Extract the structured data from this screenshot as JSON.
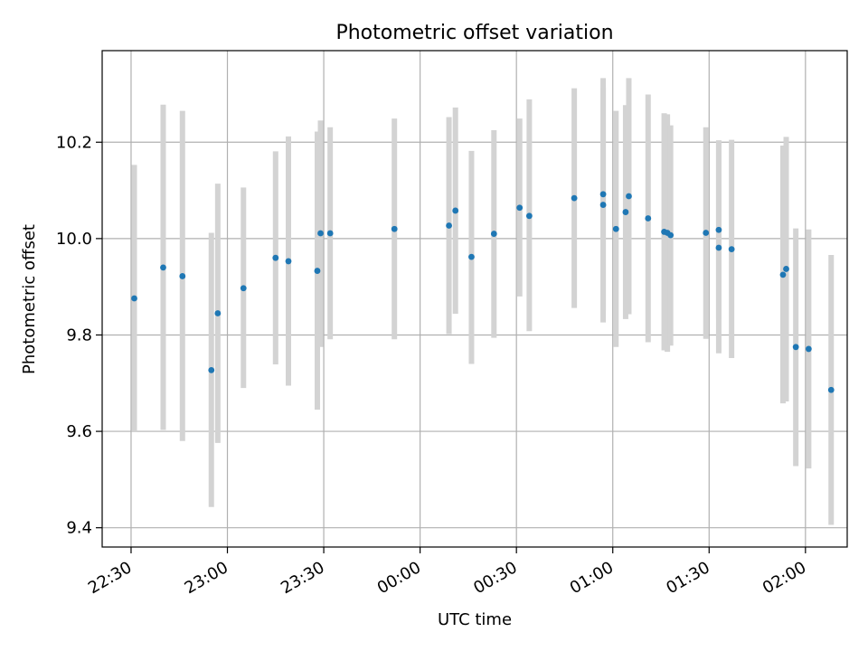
{
  "chart_data": {
    "type": "scatter",
    "title": "Photometric offset variation",
    "xlabel": "UTC time",
    "ylabel": "Photometric offset",
    "x_axis": {
      "kind": "time",
      "range": [
        "22:21",
        "02:13"
      ],
      "tick_values": [
        "22:30",
        "23:00",
        "23:30",
        "00:00",
        "00:30",
        "01:00",
        "01:30",
        "02:00"
      ],
      "tick_labels": [
        "22:30",
        "23:00",
        "23:30",
        "00:00",
        "00:30",
        "01:00",
        "01:30",
        "02:00"
      ],
      "tick_label_rotation": "slanted"
    },
    "y_axis": {
      "range": [
        9.36,
        10.39
      ],
      "tick_values": [
        9.4,
        9.6,
        9.8,
        10.0,
        10.2
      ],
      "tick_labels": [
        "9.4",
        "9.6",
        "9.8",
        "10.0",
        "10.2"
      ]
    },
    "grid": true,
    "colors": {
      "points": "#1f77b4",
      "errorbars": "#d3d3d3",
      "grid": "#b0b0b0",
      "axes": "#000000"
    },
    "points": [
      {
        "x": "22:31",
        "y": 9.876,
        "low": 9.6,
        "high": 10.153
      },
      {
        "x": "22:40",
        "y": 9.94,
        "low": 9.603,
        "high": 10.278
      },
      {
        "x": "22:46",
        "y": 9.922,
        "low": 9.58,
        "high": 10.265
      },
      {
        "x": "22:55",
        "y": 9.727,
        "low": 9.443,
        "high": 10.012
      },
      {
        "x": "22:57",
        "y": 9.845,
        "low": 9.576,
        "high": 10.114
      },
      {
        "x": "23:05",
        "y": 9.897,
        "low": 9.69,
        "high": 10.106
      },
      {
        "x": "23:15",
        "y": 9.96,
        "low": 9.739,
        "high": 10.181
      },
      {
        "x": "23:19",
        "y": 9.953,
        "low": 9.695,
        "high": 10.212
      },
      {
        "x": "23:28",
        "y": 9.933,
        "low": 9.645,
        "high": 10.222
      },
      {
        "x": "23:29",
        "y": 10.011,
        "low": 9.775,
        "high": 10.245
      },
      {
        "x": "23:32",
        "y": 10.011,
        "low": 9.791,
        "high": 10.231
      },
      {
        "x": "23:52",
        "y": 10.02,
        "low": 9.791,
        "high": 10.249
      },
      {
        "x": "00:09",
        "y": 10.027,
        "low": 9.802,
        "high": 10.252
      },
      {
        "x": "00:11",
        "y": 10.058,
        "low": 9.844,
        "high": 10.272
      },
      {
        "x": "00:16",
        "y": 9.962,
        "low": 9.74,
        "high": 10.182
      },
      {
        "x": "00:23",
        "y": 10.01,
        "low": 9.794,
        "high": 10.225
      },
      {
        "x": "00:31",
        "y": 10.064,
        "low": 9.88,
        "high": 10.249
      },
      {
        "x": "00:34",
        "y": 10.047,
        "low": 9.808,
        "high": 10.289
      },
      {
        "x": "00:48",
        "y": 10.084,
        "low": 9.856,
        "high": 10.312
      },
      {
        "x": "00:57",
        "y": 10.07,
        "low": 9.826,
        "high": 10.313
      },
      {
        "x": "00:57",
        "y": 10.092,
        "low": 9.851,
        "high": 10.333
      },
      {
        "x": "01:01",
        "y": 10.02,
        "low": 9.775,
        "high": 10.265
      },
      {
        "x": "01:04",
        "y": 10.055,
        "low": 9.833,
        "high": 10.277
      },
      {
        "x": "01:05",
        "y": 10.088,
        "low": 9.843,
        "high": 10.333
      },
      {
        "x": "01:11",
        "y": 10.042,
        "low": 9.785,
        "high": 10.299
      },
      {
        "x": "01:16",
        "y": 10.014,
        "low": 9.768,
        "high": 10.26
      },
      {
        "x": "01:17",
        "y": 10.012,
        "low": 9.765,
        "high": 10.258
      },
      {
        "x": "01:18",
        "y": 10.007,
        "low": 9.778,
        "high": 10.235
      },
      {
        "x": "01:29",
        "y": 10.012,
        "low": 9.792,
        "high": 10.231
      },
      {
        "x": "01:33",
        "y": 10.018,
        "low": 9.833,
        "high": 10.204
      },
      {
        "x": "01:33",
        "y": 9.981,
        "low": 9.762,
        "high": 10.201
      },
      {
        "x": "01:37",
        "y": 9.978,
        "low": 9.752,
        "high": 10.205
      },
      {
        "x": "01:53",
        "y": 9.925,
        "low": 9.658,
        "high": 10.193
      },
      {
        "x": "01:54",
        "y": 9.937,
        "low": 9.662,
        "high": 10.211
      },
      {
        "x": "01:57",
        "y": 9.775,
        "low": 9.528,
        "high": 10.021
      },
      {
        "x": "02:01",
        "y": 9.771,
        "low": 9.523,
        "high": 10.019
      },
      {
        "x": "02:08",
        "y": 9.686,
        "low": 9.406,
        "high": 9.966
      }
    ]
  }
}
